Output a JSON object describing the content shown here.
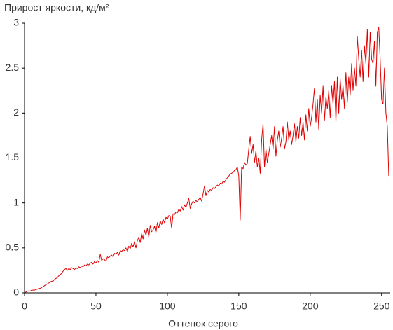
{
  "chart_data": {
    "type": "line",
    "title": "Прирост яркости, кд/м²",
    "x_label": "Оттенок серого",
    "color": "#e00000",
    "x": [
      0,
      1,
      2,
      3,
      4,
      5,
      6,
      7,
      8,
      9,
      10,
      11,
      12,
      13,
      14,
      15,
      16,
      17,
      18,
      19,
      20,
      21,
      22,
      23,
      24,
      25,
      26,
      27,
      28,
      29,
      30,
      31,
      32,
      33,
      34,
      35,
      36,
      37,
      38,
      39,
      40,
      41,
      42,
      43,
      44,
      45,
      46,
      47,
      48,
      49,
      50,
      51,
      52,
      53,
      54,
      55,
      56,
      57,
      58,
      59,
      60,
      61,
      62,
      63,
      64,
      65,
      66,
      67,
      68,
      69,
      70,
      71,
      72,
      73,
      74,
      75,
      76,
      77,
      78,
      79,
      80,
      81,
      82,
      83,
      84,
      85,
      86,
      87,
      88,
      89,
      90,
      91,
      92,
      93,
      94,
      95,
      96,
      97,
      98,
      99,
      100,
      101,
      102,
      103,
      104,
      105,
      106,
      107,
      108,
      109,
      110,
      111,
      112,
      113,
      114,
      115,
      116,
      117,
      118,
      119,
      120,
      121,
      122,
      123,
      124,
      125,
      126,
      127,
      128,
      129,
      130,
      131,
      132,
      133,
      134,
      135,
      136,
      137,
      138,
      139,
      140,
      141,
      142,
      143,
      144,
      145,
      146,
      147,
      148,
      149,
      150,
      151,
      152,
      153,
      154,
      155,
      156,
      157,
      158,
      159,
      160,
      161,
      162,
      163,
      164,
      165,
      166,
      167,
      168,
      169,
      170,
      171,
      172,
      173,
      174,
      175,
      176,
      177,
      178,
      179,
      180,
      181,
      182,
      183,
      184,
      185,
      186,
      187,
      188,
      189,
      190,
      191,
      192,
      193,
      194,
      195,
      196,
      197,
      198,
      199,
      200,
      201,
      202,
      203,
      204,
      205,
      206,
      207,
      208,
      209,
      210,
      211,
      212,
      213,
      214,
      215,
      216,
      217,
      218,
      219,
      220,
      221,
      222,
      223,
      224,
      225,
      226,
      227,
      228,
      229,
      230,
      231,
      232,
      233,
      234,
      235,
      236,
      237,
      238,
      239,
      240,
      241,
      242,
      243,
      244,
      245,
      246,
      247,
      248,
      249,
      250,
      251,
      252,
      253,
      254,
      255
    ],
    "values": [
      0,
      0.01,
      0.02,
      0.02,
      0.02,
      0.03,
      0.03,
      0.03,
      0.04,
      0.04,
      0.05,
      0.05,
      0.06,
      0.07,
      0.08,
      0.09,
      0.1,
      0.11,
      0.12,
      0.13,
      0.13,
      0.15,
      0.16,
      0.17,
      0.19,
      0.2,
      0.22,
      0.24,
      0.26,
      0.27,
      0.25,
      0.27,
      0.26,
      0.28,
      0.27,
      0.26,
      0.28,
      0.27,
      0.29,
      0.28,
      0.3,
      0.29,
      0.31,
      0.3,
      0.32,
      0.31,
      0.33,
      0.34,
      0.32,
      0.35,
      0.33,
      0.36,
      0.34,
      0.43,
      0.36,
      0.38,
      0.37,
      0.35,
      0.4,
      0.39,
      0.41,
      0.42,
      0.4,
      0.44,
      0.43,
      0.45,
      0.42,
      0.47,
      0.46,
      0.48,
      0.47,
      0.5,
      0.46,
      0.52,
      0.49,
      0.55,
      0.51,
      0.57,
      0.5,
      0.58,
      0.62,
      0.56,
      0.66,
      0.6,
      0.7,
      0.64,
      0.72,
      0.62,
      0.75,
      0.68,
      0.7,
      0.74,
      0.67,
      0.78,
      0.72,
      0.8,
      0.76,
      0.82,
      0.78,
      0.84,
      0.82,
      0.86,
      0.85,
      0.72,
      0.88,
      0.87,
      0.9,
      0.89,
      0.93,
      0.91,
      0.96,
      0.92,
      0.98,
      0.95,
      1.0,
      1.05,
      0.94,
      0.99,
      1.02,
      1.0,
      1.03,
      1.01,
      1.04,
      1.06,
      1.02,
      1.1,
      1.19,
      1.08,
      1.14,
      1.12,
      1.15,
      1.14,
      1.17,
      1.16,
      1.18,
      1.2,
      1.19,
      1.22,
      1.21,
      1.24,
      1.23,
      1.26,
      1.28,
      1.3,
      1.32,
      1.33,
      1.34,
      1.36,
      1.37,
      1.4,
      1.3,
      0.81,
      1.4,
      1.38,
      1.45,
      1.42,
      1.44,
      1.6,
      1.74,
      1.55,
      1.65,
      1.45,
      1.58,
      1.4,
      1.5,
      1.33,
      1.7,
      1.88,
      1.4,
      1.6,
      1.45,
      1.55,
      1.65,
      1.75,
      1.6,
      1.85,
      1.52,
      1.7,
      1.8,
      1.62,
      1.72,
      1.85,
      1.6,
      1.68,
      1.9,
      1.7,
      1.8,
      1.65,
      1.75,
      1.88,
      1.68,
      1.85,
      1.72,
      1.95,
      1.75,
      1.9,
      1.7,
      1.98,
      1.8,
      2.05,
      1.85,
      1.95,
      2.1,
      2.28,
      1.9,
      2.15,
      1.82,
      2.2,
      2.0,
      2.3,
      1.92,
      2.18,
      2.05,
      2.25,
      1.95,
      2.3,
      2.1,
      2.35,
      1.9,
      2.4,
      2.0,
      2.38,
      2.15,
      2.3,
      2.05,
      2.45,
      2.12,
      2.4,
      2.2,
      2.55,
      2.25,
      2.5,
      2.3,
      2.85,
      2.6,
      2.4,
      2.7,
      2.35,
      2.75,
      2.55,
      2.93,
      2.4,
      2.9,
      2.6,
      2.55,
      2.8,
      2.3,
      2.9,
      2.95,
      2.6,
      2.15,
      2.1,
      2.5,
      2.0,
      1.85,
      1.3
    ],
    "xlim": [
      0,
      256
    ],
    "xticks": [
      0,
      50,
      100,
      150,
      200,
      250
    ],
    "ylim": [
      0,
      3
    ],
    "yticks": [
      0,
      0.5,
      1,
      1.5,
      2,
      2.5,
      3
    ],
    "grid": false
  }
}
